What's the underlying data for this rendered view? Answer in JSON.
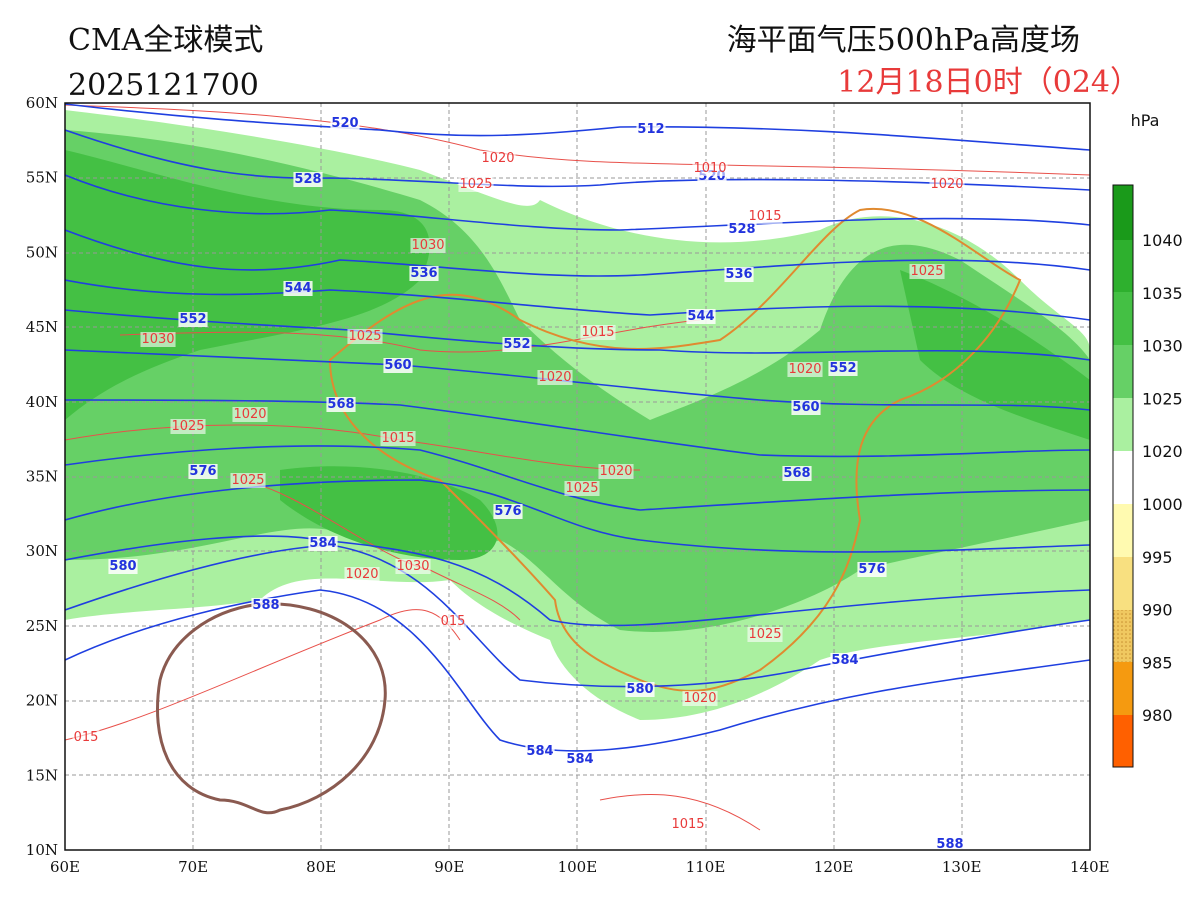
{
  "header": {
    "model": "CMA全球模式",
    "run": "2025121700",
    "title": "海平面气压500hPa高度场",
    "valid": "12月18日0时（024）"
  },
  "axes": {
    "lat_labels": [
      "60N",
      "55N",
      "50N",
      "45N",
      "40N",
      "35N",
      "30N",
      "25N",
      "20N",
      "15N",
      "10N"
    ],
    "lon_labels": [
      "60E",
      "70E",
      "80E",
      "90E",
      "100E",
      "110E",
      "120E",
      "130E",
      "140E"
    ]
  },
  "colorbar": {
    "unit": "hPa",
    "levels": [
      "1040",
      "1035",
      "1030",
      "1025",
      "1020",
      "1000",
      "995",
      "990",
      "985",
      "980"
    ]
  },
  "contours": {
    "geopotential_labels": [
      "520",
      "512",
      "528",
      "520",
      "528",
      "536",
      "536",
      "544",
      "544",
      "552",
      "552",
      "552",
      "560",
      "560",
      "568",
      "568",
      "576",
      "576",
      "576",
      "584",
      "584",
      "580",
      "580",
      "584",
      "584",
      "588",
      "588"
    ],
    "pressure_labels": [
      "1020",
      "1025",
      "1010",
      "1015",
      "1020",
      "1030",
      "1025",
      "1025",
      "1015",
      "1030",
      "1020",
      "1020",
      "1020",
      "1025",
      "1015",
      "1020",
      "1025",
      "1025",
      "1020",
      "1030",
      "015",
      "1025",
      "1020",
      "015",
      "1015"
    ]
  }
}
